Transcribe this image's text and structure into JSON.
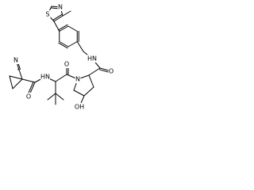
{
  "atoms": [
    {
      "label": "N"
    },
    {
      "label": "S"
    },
    {
      "label": "HN"
    },
    {
      "label": "O"
    },
    {
      "label": "O"
    },
    {
      "label": "N"
    },
    {
      "label": "HN"
    },
    {
      "label": "N"
    },
    {
      "label": "O"
    },
    {
      "label": "OH"
    }
  ]
}
